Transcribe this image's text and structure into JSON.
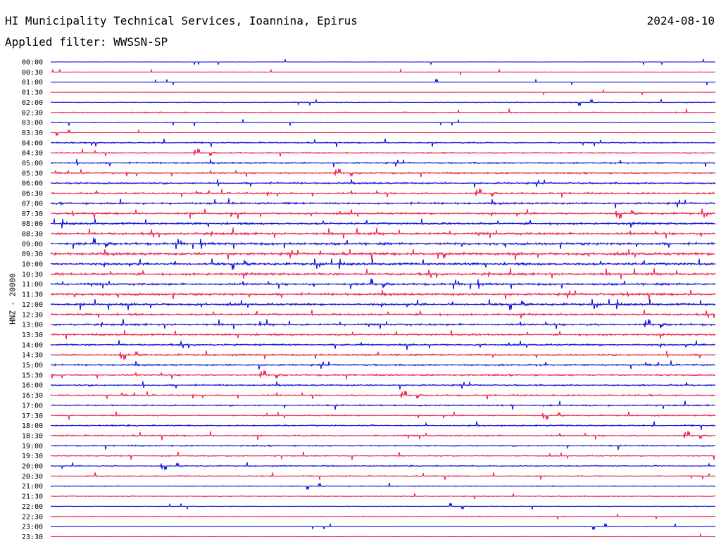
{
  "header": {
    "station": "HI Municipality Technical Services, Ioannina, Epirus",
    "date": "2024-08-10",
    "filter": "Applied filter: WWSSN-SP"
  },
  "colors": {
    "trace_a": "#0000dd",
    "trace_b": "#ee1144"
  },
  "chart_data": {
    "type": "line",
    "title": "HI Municipality Technical Services, Ioannina, Epirus",
    "ylabel": "HNZ - 20000",
    "ylabels": [
      "00:00",
      "00:30",
      "01:00",
      "01:30",
      "02:00",
      "02:30",
      "03:00",
      "03:30",
      "04:00",
      "04:30",
      "05:00",
      "05:30",
      "06:00",
      "06:30",
      "07:00",
      "07:30",
      "08:00",
      "08:30",
      "09:00",
      "09:30",
      "10:00",
      "10:30",
      "11:00",
      "11:30",
      "12:00",
      "12:30",
      "13:00",
      "13:30",
      "14:00",
      "14:30",
      "15:00",
      "15:30",
      "16:00",
      "16:30",
      "17:00",
      "17:30",
      "18:00",
      "18:30",
      "19:00",
      "19:30",
      "20:00",
      "20:30",
      "21:00",
      "21:30",
      "22:00",
      "22:30",
      "23:00",
      "23:30"
    ],
    "series": [
      {
        "values": [
          0.1,
          0.15,
          0.1,
          0.1,
          0.3,
          0.35,
          0.25,
          0.2,
          0.45,
          0.4,
          0.55,
          0.5,
          0.6,
          0.55,
          0.7,
          0.7,
          0.75,
          0.8,
          0.85,
          0.9,
          0.85,
          0.8,
          0.75,
          0.8,
          0.8,
          0.7,
          0.7,
          0.65,
          0.65,
          0.6,
          0.6,
          0.55,
          0.55,
          0.5,
          0.5,
          0.45,
          0.5,
          0.5,
          0.45,
          0.4,
          0.4,
          0.35,
          0.3,
          0.3,
          0.25,
          0.25,
          0.2,
          0.15
        ]
      }
    ]
  }
}
